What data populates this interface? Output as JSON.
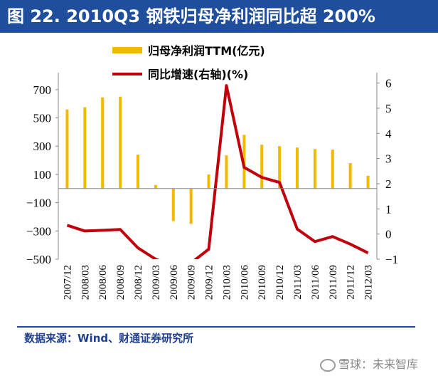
{
  "title": "图 22. 2010Q3 钢铁归母净利润同比超 200%",
  "source": "数据来源：Wind、财通证券研究所",
  "watermark": "雪球：未来智库",
  "colors": {
    "bar": "#f5b800",
    "line": "#c0000b",
    "title_bg": "#1f4e9c"
  },
  "chart_data": {
    "type": "bar",
    "legend_position": "top",
    "grid": false,
    "categories": [
      "2007/12",
      "2008/03",
      "2008/06",
      "2008/09",
      "2008/12",
      "2009/03",
      "2009/06",
      "2009/09",
      "2009/12",
      "2010/03",
      "2010/06",
      "2010/09",
      "2010/12",
      "2011/03",
      "2011/06",
      "2011/09",
      "2011/12",
      "2012/03"
    ],
    "y_left": {
      "ylim": [
        -500,
        800
      ],
      "ticks": [
        700,
        500,
        300,
        100,
        -100,
        -300,
        -500
      ]
    },
    "y_right": {
      "ylim": [
        -1,
        6.3
      ],
      "ticks": [
        6,
        5,
        4,
        3,
        2,
        1,
        0,
        -1
      ]
    },
    "series": [
      {
        "name": "归母净利润TTM(亿元)",
        "type": "bar",
        "axis": "left",
        "values": [
          560,
          575,
          645,
          650,
          240,
          25,
          -230,
          -250,
          100,
          235,
          380,
          310,
          300,
          290,
          280,
          275,
          180,
          90
        ]
      },
      {
        "name": "同比增速(右轴)(%)",
        "type": "line",
        "axis": "right",
        "values": [
          0.35,
          0.12,
          0.15,
          0.18,
          -0.55,
          -1.0,
          -1.25,
          -1.15,
          -0.6,
          5.9,
          2.65,
          2.25,
          2.05,
          0.2,
          -0.3,
          -0.1,
          -0.4,
          -0.75
        ]
      }
    ]
  }
}
